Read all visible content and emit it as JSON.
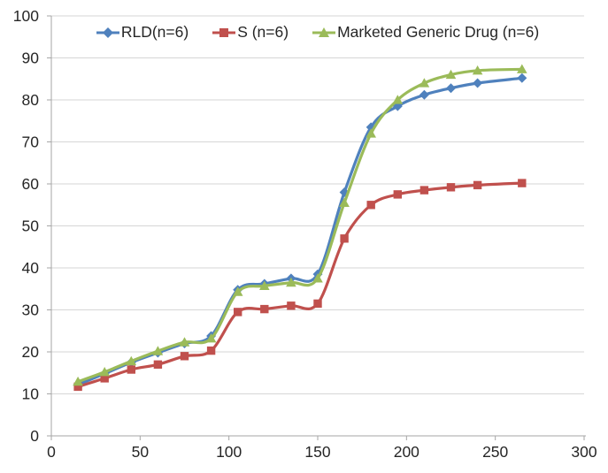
{
  "chart_data": {
    "type": "line",
    "title": "",
    "xlabel": "",
    "ylabel": "",
    "xlim": [
      0,
      300
    ],
    "ylim": [
      0,
      100
    ],
    "x_ticks": [
      0,
      50,
      100,
      150,
      200,
      250,
      300
    ],
    "y_ticks": [
      0,
      10,
      20,
      30,
      40,
      50,
      60,
      70,
      80,
      90,
      100
    ],
    "grid": "horizontal",
    "legend_position": "top-center",
    "line_style": "smoothed",
    "x": [
      15,
      30,
      45,
      60,
      75,
      90,
      105,
      120,
      135,
      150,
      165,
      180,
      195,
      210,
      225,
      240,
      265
    ],
    "series": [
      {
        "name": "RLD(n=6)",
        "color": "#4F81BD",
        "marker": "diamond",
        "values": [
          12.2,
          14.8,
          17.5,
          19.8,
          22.0,
          23.8,
          34.8,
          36.2,
          37.5,
          38.5,
          58.0,
          73.5,
          78.5,
          81.2,
          82.8,
          84.0,
          85.2
        ]
      },
      {
        "name": "S (n=6)",
        "color": "#C0504D",
        "marker": "square",
        "values": [
          11.7,
          13.7,
          15.8,
          17.0,
          19.0,
          20.3,
          29.5,
          30.2,
          31.0,
          31.5,
          47.0,
          55.0,
          57.5,
          58.5,
          59.2,
          59.7,
          60.2
        ]
      },
      {
        "name": "Marketed Generic Drug (n=6)",
        "color": "#9BBB59",
        "marker": "triangle",
        "values": [
          12.9,
          15.2,
          17.8,
          20.2,
          22.3,
          23.2,
          34.3,
          35.7,
          36.5,
          37.5,
          55.5,
          72.0,
          80.0,
          84.0,
          86.0,
          87.0,
          87.3
        ]
      }
    ]
  },
  "style": {
    "gridline_color": "#D6D6D6",
    "axis_color": "#A6A6A6",
    "tick_label_color": "#262626",
    "background": "#FFFFFF"
  }
}
